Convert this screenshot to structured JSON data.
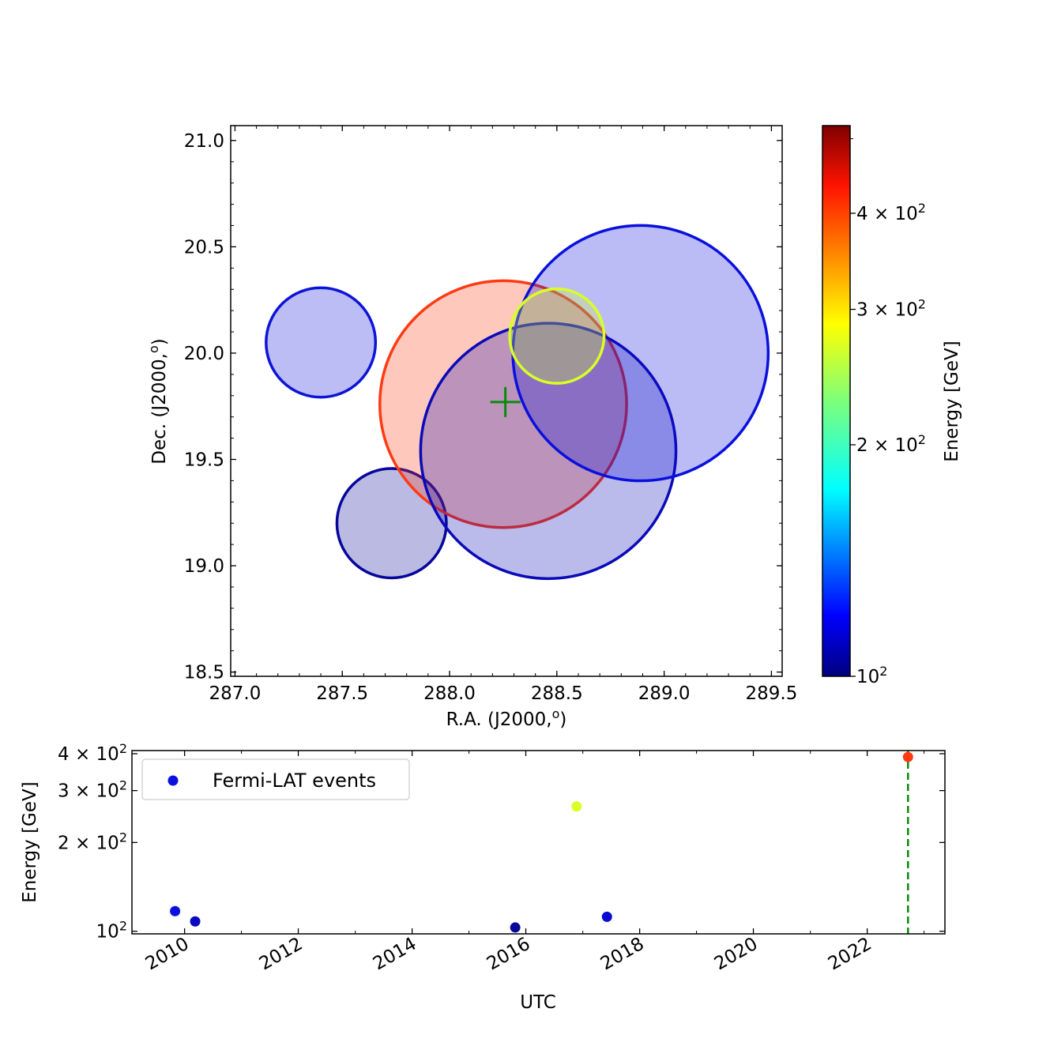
{
  "chart_data": [
    {
      "type": "scatter",
      "xlabel": "R.A. (J2000,",
      "xlabel_sup": "o",
      "ylabel": "Dec. (J2000,",
      "ylabel_sup": "o",
      "xlim": [
        286.98,
        289.55
      ],
      "ylim": [
        18.48,
        21.07
      ],
      "xticks": [
        "287.0",
        "287.5",
        "288.0",
        "288.5",
        "289.0",
        "289.5"
      ],
      "yticks": [
        "18.5",
        "19.0",
        "19.5",
        "20.0",
        "20.5",
        "21.0"
      ],
      "circles": [
        {
          "ra": 287.4,
          "dec": 20.05,
          "radius": 0.255,
          "energy": 110,
          "color": "#0d13d8"
        },
        {
          "ra": 287.73,
          "dec": 19.2,
          "radius": 0.255,
          "energy": 101,
          "color": "#06069a"
        },
        {
          "ra": 288.25,
          "dec": 19.76,
          "radius": 0.575,
          "energy": 400,
          "color": "#ff3a12"
        },
        {
          "ra": 288.46,
          "dec": 19.54,
          "radius": 0.595,
          "energy": 104,
          "color": "#0a0ab8"
        },
        {
          "ra": 288.89,
          "dec": 20.0,
          "radius": 0.595,
          "energy": 112,
          "color": "#0a10dc"
        },
        {
          "ra": 288.5,
          "dec": 20.08,
          "radius": 0.22,
          "energy": 268,
          "color": "#d8ff26"
        }
      ],
      "marker": {
        "ra": 288.26,
        "dec": 19.77,
        "symbol": "+",
        "color": "#0a8a0a"
      },
      "colorbar": {
        "label": "Energy [GeV]",
        "scale": "log",
        "range": [
          100,
          520
        ],
        "ticks": [
          {
            "value": 100,
            "label_base": "10",
            "label_exp": "2"
          },
          {
            "value": 200,
            "label_base": "2 × 10",
            "label_exp": "2"
          },
          {
            "value": 300,
            "label_base": "3 × 10",
            "label_exp": "2"
          },
          {
            "value": 400,
            "label_base": "4 × 10",
            "label_exp": "2"
          }
        ],
        "colormap": "jet"
      }
    },
    {
      "type": "scatter",
      "xlabel": "UTC",
      "ylabel": "Energy [GeV]",
      "yscale": "log",
      "xlim": [
        "2009-01-28",
        "2023-05-15"
      ],
      "ylim": [
        98,
        410
      ],
      "xticks": [
        "2010",
        "2012",
        "2014",
        "2016",
        "2018",
        "2020",
        "2022"
      ],
      "yticks": [
        {
          "value": 100,
          "label_base": "10",
          "label_exp": "2"
        },
        {
          "value": 200,
          "label_base": "2 × 10",
          "label_exp": "2"
        },
        {
          "value": 300,
          "label_base": "3 × 10",
          "label_exp": "2"
        },
        {
          "value": 400,
          "label_base": "4 × 10",
          "label_exp": "2"
        }
      ],
      "points": [
        {
          "x": "2009-11-01",
          "y": 117,
          "color": "#0a10e0"
        },
        {
          "x": "2010-03-10",
          "y": 108,
          "color": "#0808c0"
        },
        {
          "x": "2015-10-25",
          "y": 103,
          "color": "#06069a"
        },
        {
          "x": "2016-11-22",
          "y": 265,
          "color": "#d8ff26"
        },
        {
          "x": "2017-06-05",
          "y": 112,
          "color": "#0a0ad0"
        },
        {
          "x": "2022-09-20",
          "y": 390,
          "color": "#ff3a12"
        }
      ],
      "vline": {
        "x": "2022-09-20",
        "color": "#0a8a0a",
        "style": "dashed"
      },
      "legend": {
        "label": "Fermi-LAT events",
        "marker_color": "#0a10e0",
        "placement": "upper left"
      }
    }
  ]
}
